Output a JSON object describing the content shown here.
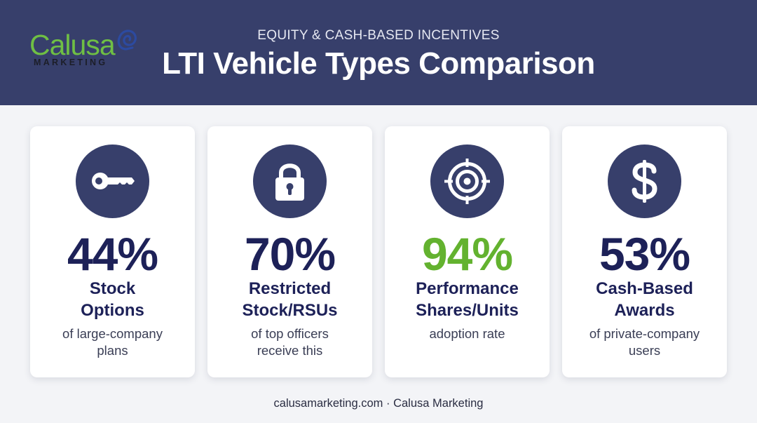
{
  "header": {
    "logo": {
      "word": "Calusa",
      "sub": "MARKETING"
    },
    "subtitle": "EQUITY & CASH-BASED INCENTIVES",
    "title": "LTI Vehicle Types Comparison"
  },
  "colors": {
    "header_bg": "#373f6b",
    "stat_navy": "#1d2158",
    "stat_green": "#63b22f",
    "logo_green": "#6fbf44"
  },
  "cards": [
    {
      "icon": "key-icon",
      "stat": "44%",
      "label_line1": "Stock",
      "label_line2": "Options",
      "desc_line1": "of large-company",
      "desc_line2": "plans"
    },
    {
      "icon": "lock-icon",
      "stat": "70%",
      "label_line1": "Restricted",
      "label_line2": "Stock/RSUs",
      "desc_line1": "of top officers",
      "desc_line2": "receive this"
    },
    {
      "icon": "target-icon",
      "stat": "94%",
      "label_line1": "Performance",
      "label_line2": "Shares/Units",
      "desc_line1": "adoption rate",
      "desc_line2": ""
    },
    {
      "icon": "dollar-icon",
      "stat": "53%",
      "label_line1": "Cash-Based",
      "label_line2": "Awards",
      "desc_line1": "of private-company",
      "desc_line2": "users"
    }
  ],
  "footer": {
    "text": "calusamarketing.com · Calusa Marketing"
  }
}
